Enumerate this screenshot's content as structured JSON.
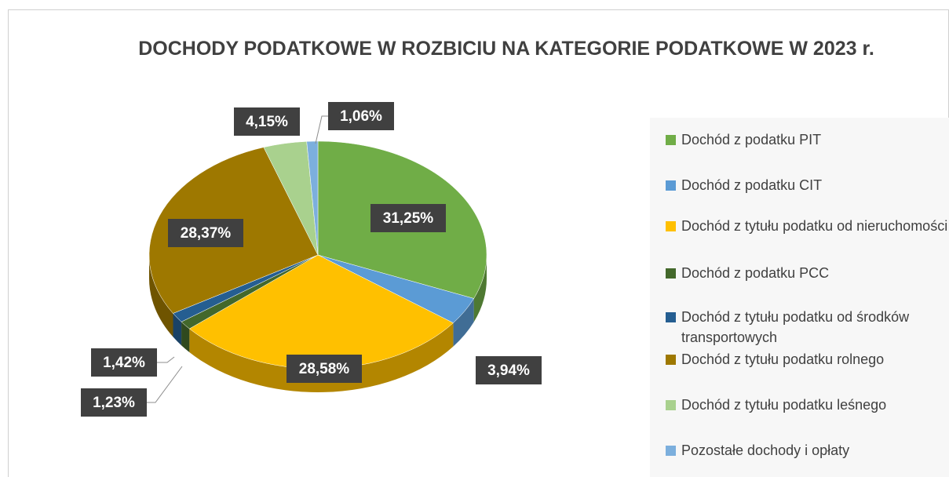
{
  "chart_data": {
    "type": "pie3d",
    "title": "DOCHODY PODATKOWE W ROZBICIU NA KATEGORIE PODATKOWE W 2023 r.",
    "categories": [
      "Dochód z podatku PIT",
      "Dochód z podatku CIT",
      "Dochód z tytułu podatku od nieruchomości",
      "Dochód z podatku PCC",
      "Dochód z tytułu podatku od środków transportowych",
      "Dochód z tytułu podatku rolnego",
      "Dochód z tytułu podatku leśnego",
      "Pozostałe dochody i opłaty"
    ],
    "values": [
      31.25,
      3.94,
      28.58,
      1.23,
      1.42,
      28.37,
      4.15,
      1.06
    ],
    "value_labels": [
      "31,25%",
      "3,94%",
      "28,58%",
      "1,23%",
      "1,42%",
      "28,37%",
      "4,15%",
      "1,06%"
    ],
    "colors": [
      "#70ad47",
      "#5b9bd5",
      "#ffc000",
      "#43682b",
      "#255e91",
      "#9e7800",
      "#a9d18e",
      "#7cafdd"
    ],
    "legend": "right"
  }
}
